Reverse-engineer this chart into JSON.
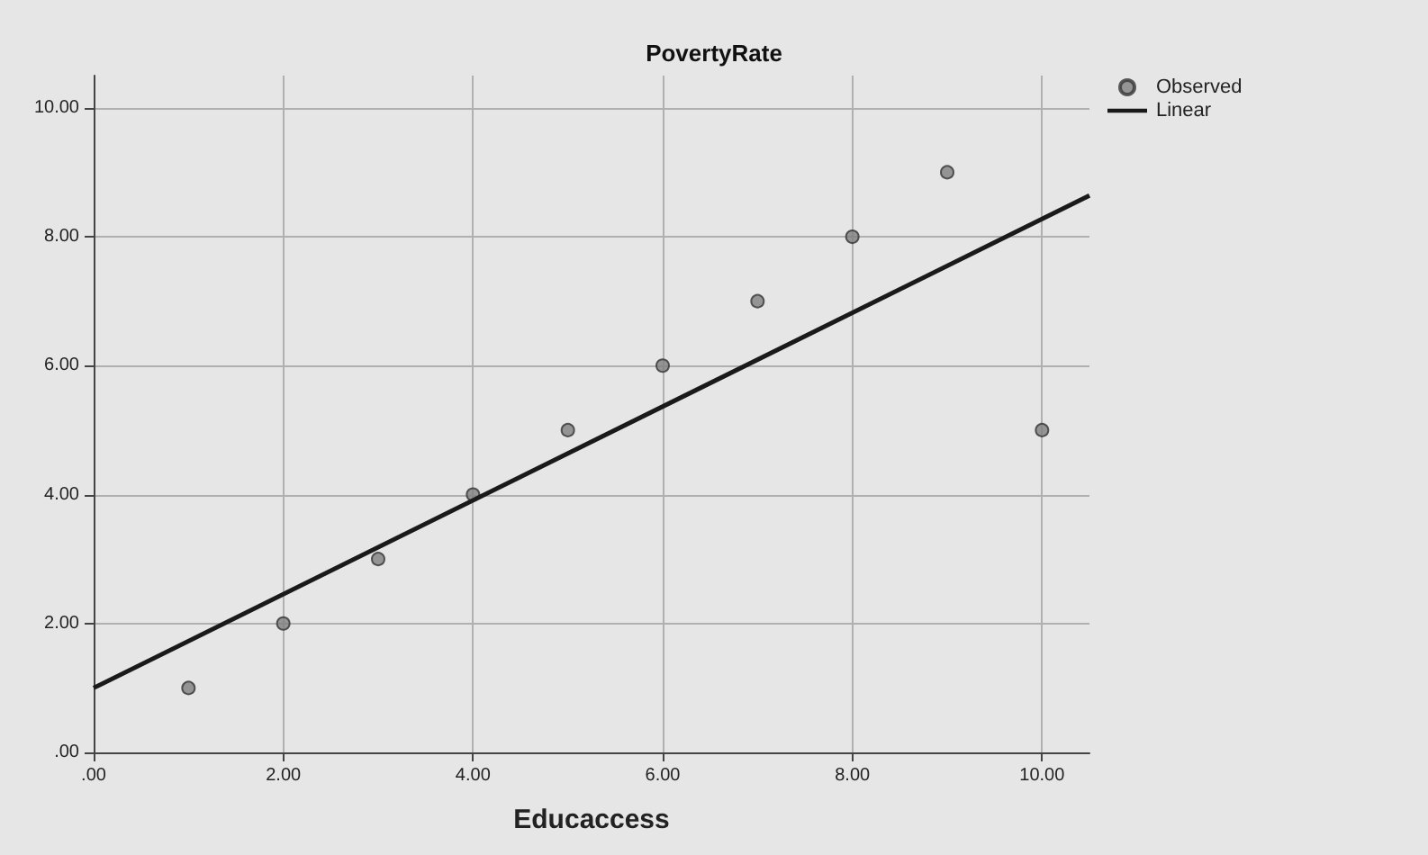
{
  "chart_data": {
    "type": "scatter",
    "title": "PovertyRate",
    "xlabel": "Educaccess",
    "xlim": [
      0,
      10.5
    ],
    "ylim": [
      0,
      10.5
    ],
    "xticks": [
      {
        "value": 0,
        "label": ".00"
      },
      {
        "value": 2,
        "label": "2.00"
      },
      {
        "value": 4,
        "label": "4.00"
      },
      {
        "value": 6,
        "label": "6.00"
      },
      {
        "value": 8,
        "label": "8.00"
      },
      {
        "value": 10,
        "label": "10.00"
      }
    ],
    "yticks": [
      {
        "value": 0,
        "label": ".00"
      },
      {
        "value": 2,
        "label": "2.00"
      },
      {
        "value": 4,
        "label": "4.00"
      },
      {
        "value": 6,
        "label": "6.00"
      },
      {
        "value": 8,
        "label": "8.00"
      },
      {
        "value": 10,
        "label": "10.00"
      }
    ],
    "grid": true,
    "legend": "top right",
    "marker": "circle",
    "series": [
      {
        "name": "Observed",
        "color": "#808080",
        "x": [
          1,
          2,
          3,
          4,
          5,
          6,
          7,
          8,
          9,
          10
        ],
        "values": [
          1,
          2,
          3,
          4,
          5,
          6,
          7,
          8,
          9,
          5
        ]
      },
      {
        "name": "Linear",
        "type": "line",
        "color": "#1a1a1a",
        "marker": "none",
        "line_style": "solid",
        "x": [
          0,
          10.5
        ],
        "values": [
          1.0,
          8.64
        ]
      }
    ]
  }
}
